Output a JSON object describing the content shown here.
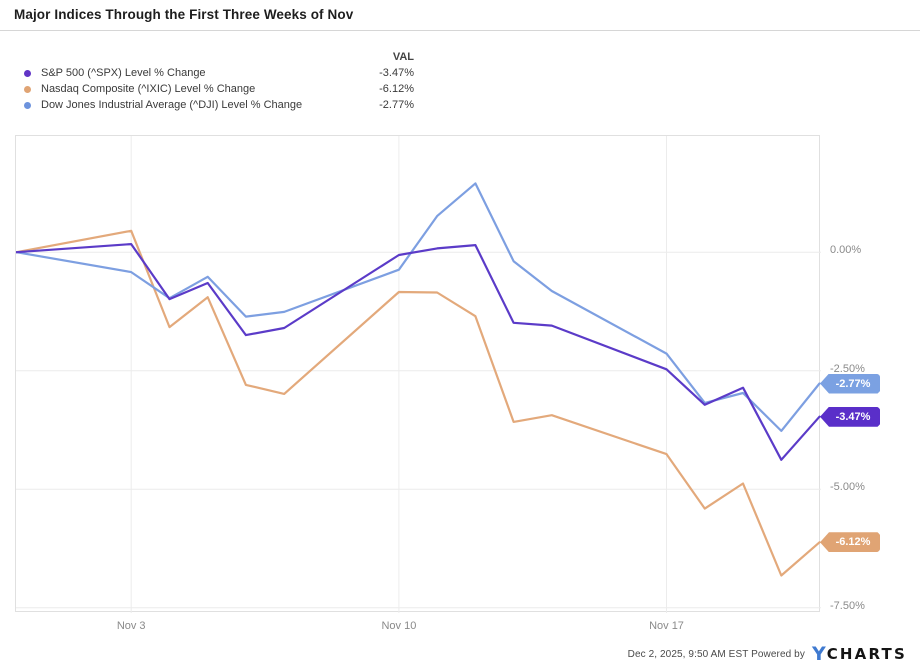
{
  "header": {
    "title": "Major Indices Through the First Three Weeks of Nov"
  },
  "legend": {
    "val_header": "VAL",
    "items": [
      {
        "label": "S&P 500 (^SPX) Level % Change",
        "val": "-3.47%",
        "color": "#6134c6"
      },
      {
        "label": "Nasdaq Composite (^IXIC) Level % Change",
        "val": "-6.12%",
        "color": "#e0a474"
      },
      {
        "label": "Dow Jones Industrial Average (^DJI) Level % Change",
        "val": "-2.77%",
        "color": "#6d93dd"
      }
    ]
  },
  "chart_data": {
    "type": "line",
    "title": "Major Indices Through the First Three Weeks of Nov",
    "x_dates": [
      "Oct 31",
      "Nov 3",
      "Nov 4",
      "Nov 5",
      "Nov 6",
      "Nov 7",
      "Nov 10",
      "Nov 11",
      "Nov 12",
      "Nov 13",
      "Nov 14",
      "Nov 17",
      "Nov 18",
      "Nov 19",
      "Nov 20",
      "Nov 21"
    ],
    "x_day_offsets": [
      0,
      3,
      4,
      5,
      6,
      7,
      10,
      11,
      12,
      13,
      14,
      17,
      18,
      19,
      20,
      21
    ],
    "series": [
      {
        "name": "S&P 500 (^SPX) Level % Change",
        "color": "#5b3bc8",
        "badge": "-3.47%",
        "badge_color": "#5a2fc9",
        "z": 3,
        "values": [
          0,
          0.17,
          -0.99,
          -0.65,
          -1.75,
          -1.6,
          -0.06,
          0.08,
          0.15,
          -1.49,
          -1.55,
          -2.47,
          -3.22,
          -2.86,
          -4.38,
          -3.47
        ]
      },
      {
        "name": "Nasdaq Composite (^IXIC) Level % Change",
        "color": "#e3a97b",
        "badge": "-6.12%",
        "badge_color": "#e0a474",
        "z": 1,
        "values": [
          0,
          0.45,
          -1.58,
          -0.95,
          -2.8,
          -2.99,
          -0.84,
          -0.85,
          -1.35,
          -3.58,
          -3.44,
          -4.26,
          -5.41,
          -4.88,
          -6.82,
          -6.12
        ]
      },
      {
        "name": "Dow Jones Industrial Average (^DJI) Level % Change",
        "color": "#7d9fe1",
        "badge": "-2.77%",
        "badge_color": "#7ba1e2",
        "z": 2,
        "values": [
          0,
          -0.42,
          -0.97,
          -0.52,
          -1.36,
          -1.26,
          -0.37,
          0.76,
          1.45,
          -0.19,
          -0.82,
          -2.14,
          -3.18,
          -2.97,
          -3.77,
          -2.77
        ]
      }
    ],
    "x_tick_labels": [
      "Nov 3",
      "Nov 10",
      "Nov 17"
    ],
    "x_tick_day_offsets": [
      3,
      10,
      17
    ],
    "y_tick_labels": [
      "0.00%",
      "-2.50%",
      "-5.00%",
      "-7.50%"
    ],
    "y_tick_values": [
      0,
      -2.5,
      -5,
      -7.5
    ],
    "ylim": [
      -7.58,
      2.44
    ],
    "xlim_days": [
      0,
      21
    ],
    "grid": true,
    "legend_position": "top-left",
    "grid_color": "#ececec"
  },
  "footer": {
    "timestamp_powered": "Dec 2, 2025, 9:50 AM EST Powered by",
    "logo_y": "Y",
    "logo_charts": "CHARTS"
  }
}
